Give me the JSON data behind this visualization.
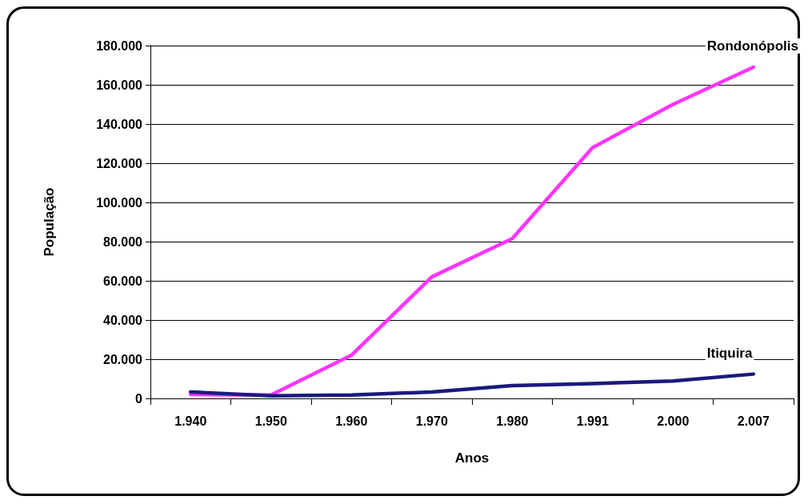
{
  "chart_data": {
    "type": "line",
    "xlabel": "Anos",
    "ylabel": "População",
    "categories": [
      "1.940",
      "1.950",
      "1.960",
      "1.970",
      "1.980",
      "1.991",
      "2.000",
      "2.007"
    ],
    "series": [
      {
        "name": "Rondonópolis",
        "color": "#ff33ff",
        "values": [
          2000,
          1700,
          22000,
          62000,
          81500,
          128000,
          150000,
          169000
        ]
      },
      {
        "name": "Itiquira",
        "color": "#1a1a80",
        "values": [
          3300,
          1300,
          1700,
          3300,
          6500,
          7600,
          8900,
          12400
        ]
      }
    ],
    "ylim": [
      0,
      180000
    ],
    "yticks": [
      0,
      {
        "value": 20000,
        "label": "20.000"
      },
      {
        "value": 40000,
        "label": "40.000"
      },
      {
        "value": 60000,
        "label": "60.000"
      },
      {
        "value": 80000,
        "label": "80.000"
      },
      {
        "value": 100000,
        "label": "100.000"
      },
      {
        "value": 120000,
        "label": "120.000"
      },
      {
        "value": 140000,
        "label": "140.000"
      },
      {
        "value": 160000,
        "label": "160.000"
      },
      {
        "value": 180000,
        "label": "180.000"
      }
    ],
    "grid": "y",
    "legend": false,
    "marker": "none",
    "line_style": "solid"
  }
}
